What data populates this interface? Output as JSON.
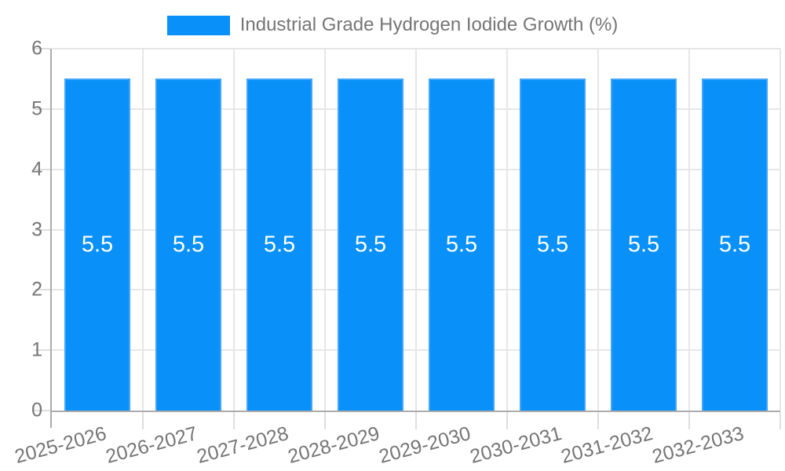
{
  "chart_data": {
    "type": "bar",
    "title": "Industrial Grade Hydrogen Iodide Growth (%)",
    "categories": [
      "2025-2026",
      "2026-2027",
      "2027-2028",
      "2028-2029",
      "2029-2030",
      "2030-2031",
      "2031-2032",
      "2032-2033"
    ],
    "series": [
      {
        "name": "Industrial Grade Hydrogen Iodide Growth (%)",
        "values": [
          5.5,
          5.5,
          5.5,
          5.5,
          5.5,
          5.5,
          5.5,
          5.5
        ]
      }
    ],
    "value_labels": [
      "5.5",
      "5.5",
      "5.5",
      "5.5",
      "5.5",
      "5.5",
      "5.5",
      "5.5"
    ],
    "xlabel": "",
    "ylabel": "",
    "ylim": [
      0,
      6
    ],
    "yticks": [
      0,
      1,
      2,
      3,
      4,
      5,
      6
    ],
    "ytick_labels": [
      "0",
      "1",
      "2",
      "3",
      "4",
      "5",
      "6"
    ],
    "grid": true,
    "legend_position": "top",
    "x_label_rotation_deg": -15,
    "colors": {
      "bar": "#0990f9",
      "grid": "#e6e6e6",
      "tick": "#dedede",
      "axis": "#ababab",
      "text": "#757575",
      "value_text": "#ffffff",
      "background": "#ffffff"
    }
  }
}
